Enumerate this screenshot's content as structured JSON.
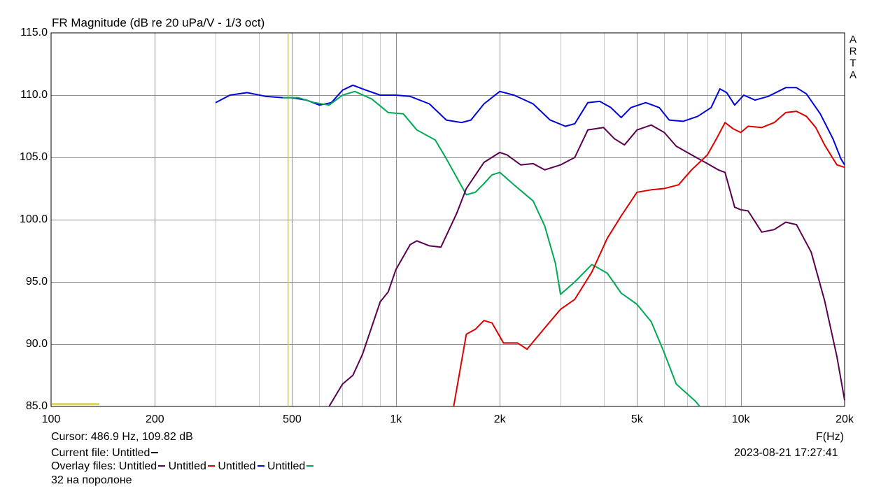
{
  "chart_data": {
    "type": "line",
    "title": "FR Magnitude (dB re 20 uPa/V - 1/3 oct)",
    "xlabel": "F(Hz)",
    "x_scale": "log",
    "xlim": [
      100,
      20000
    ],
    "ylim": [
      85,
      115
    ],
    "x_ticks": [
      100,
      200,
      500,
      1000,
      2000,
      5000,
      10000,
      20000
    ],
    "x_tick_labels": [
      "100",
      "200",
      "500",
      "1k",
      "2k",
      "5k",
      "10k",
      "20k"
    ],
    "y_ticks": [
      85,
      90,
      95,
      100,
      105,
      110,
      115
    ],
    "y_tick_labels": [
      "85.0",
      "90.0",
      "95.0",
      "100.0",
      "105.0",
      "110.0",
      "115.0"
    ],
    "grid": true,
    "cursor": {
      "x": 486.9,
      "color": "#c8c800"
    },
    "series": [
      {
        "name": "Untitled",
        "color": "#0000dd",
        "points": [
          [
            300,
            109.4
          ],
          [
            330,
            110.0
          ],
          [
            370,
            110.2
          ],
          [
            420,
            109.9
          ],
          [
            470,
            109.8
          ],
          [
            500,
            109.8
          ],
          [
            550,
            109.6
          ],
          [
            600,
            109.2
          ],
          [
            650,
            109.4
          ],
          [
            700,
            110.4
          ],
          [
            750,
            110.8
          ],
          [
            800,
            110.5
          ],
          [
            900,
            110.0
          ],
          [
            1000,
            110.0
          ],
          [
            1100,
            109.9
          ],
          [
            1250,
            109.3
          ],
          [
            1400,
            108.0
          ],
          [
            1550,
            107.8
          ],
          [
            1650,
            108.0
          ],
          [
            1800,
            109.3
          ],
          [
            2000,
            110.3
          ],
          [
            2200,
            110.0
          ],
          [
            2500,
            109.3
          ],
          [
            2800,
            108.0
          ],
          [
            3100,
            107.5
          ],
          [
            3300,
            107.7
          ],
          [
            3600,
            109.4
          ],
          [
            3900,
            109.5
          ],
          [
            4200,
            109.0
          ],
          [
            4500,
            108.2
          ],
          [
            4800,
            109.0
          ],
          [
            5300,
            109.4
          ],
          [
            5800,
            109.0
          ],
          [
            6200,
            108.0
          ],
          [
            6800,
            107.9
          ],
          [
            7500,
            108.3
          ],
          [
            8200,
            109.0
          ],
          [
            8700,
            110.5
          ],
          [
            9100,
            110.2
          ],
          [
            9600,
            109.2
          ],
          [
            10200,
            110.0
          ],
          [
            11000,
            109.6
          ],
          [
            12000,
            109.9
          ],
          [
            13500,
            110.6
          ],
          [
            14500,
            110.6
          ],
          [
            15500,
            110.1
          ],
          [
            17000,
            108.5
          ],
          [
            18500,
            106.5
          ],
          [
            19500,
            104.9
          ],
          [
            20000,
            104.4
          ]
        ]
      },
      {
        "name": "Untitled",
        "color": "#00aa55",
        "points": [
          [
            470,
            109.8
          ],
          [
            520,
            109.8
          ],
          [
            580,
            109.4
          ],
          [
            640,
            109.2
          ],
          [
            700,
            110.0
          ],
          [
            760,
            110.3
          ],
          [
            850,
            109.7
          ],
          [
            950,
            108.6
          ],
          [
            1050,
            108.5
          ],
          [
            1150,
            107.2
          ],
          [
            1300,
            106.4
          ],
          [
            1400,
            104.9
          ],
          [
            1600,
            102.0
          ],
          [
            1700,
            102.2
          ],
          [
            1800,
            102.9
          ],
          [
            1900,
            103.6
          ],
          [
            2000,
            103.8
          ],
          [
            2200,
            102.8
          ],
          [
            2500,
            101.5
          ],
          [
            2700,
            99.5
          ],
          [
            2900,
            96.5
          ],
          [
            3000,
            94.0
          ],
          [
            3300,
            95.0
          ],
          [
            3700,
            96.4
          ],
          [
            4100,
            95.7
          ],
          [
            4500,
            94.1
          ],
          [
            5000,
            93.2
          ],
          [
            5500,
            91.8
          ],
          [
            6000,
            89.3
          ],
          [
            6500,
            86.8
          ],
          [
            7000,
            86.0
          ],
          [
            7400,
            85.4
          ],
          [
            7600,
            84.9
          ]
        ]
      },
      {
        "name": "Untitled",
        "color": "#5a0050",
        "points": [
          [
            640,
            85.0
          ],
          [
            700,
            86.8
          ],
          [
            750,
            87.5
          ],
          [
            800,
            89.2
          ],
          [
            900,
            93.4
          ],
          [
            950,
            94.2
          ],
          [
            1000,
            96.0
          ],
          [
            1100,
            98.0
          ],
          [
            1150,
            98.3
          ],
          [
            1250,
            97.9
          ],
          [
            1350,
            97.8
          ],
          [
            1500,
            100.5
          ],
          [
            1600,
            102.5
          ],
          [
            1800,
            104.6
          ],
          [
            2000,
            105.4
          ],
          [
            2100,
            105.2
          ],
          [
            2300,
            104.4
          ],
          [
            2500,
            104.5
          ],
          [
            2700,
            104.0
          ],
          [
            3000,
            104.4
          ],
          [
            3300,
            105.0
          ],
          [
            3600,
            107.2
          ],
          [
            4000,
            107.4
          ],
          [
            4300,
            106.5
          ],
          [
            4600,
            106.0
          ],
          [
            5000,
            107.2
          ],
          [
            5500,
            107.6
          ],
          [
            6000,
            107.0
          ],
          [
            6500,
            105.9
          ],
          [
            7200,
            105.2
          ],
          [
            8000,
            104.5
          ],
          [
            8600,
            104.0
          ],
          [
            9000,
            103.8
          ],
          [
            9600,
            101.0
          ],
          [
            10000,
            100.8
          ],
          [
            10500,
            100.7
          ],
          [
            11500,
            99.0
          ],
          [
            12500,
            99.2
          ],
          [
            13500,
            99.8
          ],
          [
            14500,
            99.6
          ],
          [
            16000,
            97.4
          ],
          [
            17500,
            93.5
          ],
          [
            19000,
            89.0
          ],
          [
            20000,
            85.5
          ]
        ]
      },
      {
        "name": "Untitled",
        "color": "#dd0000",
        "points": [
          [
            1470,
            85.0
          ],
          [
            1600,
            90.8
          ],
          [
            1700,
            91.2
          ],
          [
            1800,
            91.9
          ],
          [
            1900,
            91.7
          ],
          [
            2050,
            90.1
          ],
          [
            2250,
            90.1
          ],
          [
            2400,
            89.6
          ],
          [
            2700,
            91.3
          ],
          [
            3000,
            92.8
          ],
          [
            3300,
            93.6
          ],
          [
            3700,
            95.8
          ],
          [
            4100,
            98.5
          ],
          [
            4500,
            100.3
          ],
          [
            5000,
            102.2
          ],
          [
            5500,
            102.4
          ],
          [
            6000,
            102.5
          ],
          [
            6600,
            102.8
          ],
          [
            7200,
            104.0
          ],
          [
            8000,
            105.2
          ],
          [
            8500,
            106.5
          ],
          [
            9000,
            107.8
          ],
          [
            9500,
            107.3
          ],
          [
            10000,
            107.0
          ],
          [
            10500,
            107.5
          ],
          [
            11500,
            107.4
          ],
          [
            12500,
            107.8
          ],
          [
            13500,
            108.6
          ],
          [
            14500,
            108.7
          ],
          [
            15500,
            108.3
          ],
          [
            16500,
            107.4
          ],
          [
            17500,
            106.0
          ],
          [
            19000,
            104.4
          ],
          [
            20000,
            104.2
          ]
        ]
      }
    ]
  },
  "footer": {
    "cursor": "Cursor: 486.9 Hz, 109.82 dB",
    "current_file_label": "Current file: Untitled",
    "overlay_label": "Overlay files: Untitled",
    "overlay_names": [
      "Untitled",
      "Untitled",
      "Untitled"
    ],
    "timestamp": "2023-08-21   17:27:41",
    "note": "32 на поролоне"
  },
  "watermark": [
    "A",
    "R",
    "T",
    "A"
  ]
}
